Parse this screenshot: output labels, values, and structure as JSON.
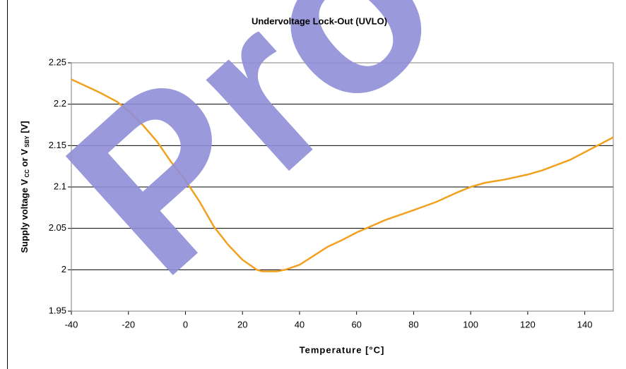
{
  "chart_data": {
    "type": "line",
    "title": "Undervoltage Lock-Out (UVLO)",
    "xlabel": "Temperature [°C]",
    "ylabel_parts": [
      {
        "text": "Supply voltage V"
      },
      {
        "text": "CC",
        "sub": true
      },
      {
        "text": " or V"
      },
      {
        "text": "SBY",
        "sub": true
      },
      {
        "text": " [V]"
      }
    ],
    "watermark": "Pro",
    "xlim": [
      -40,
      150
    ],
    "xticks": [
      -40,
      -20,
      0,
      20,
      40,
      60,
      80,
      100,
      120,
      140
    ],
    "ylim": [
      1.95,
      2.25
    ],
    "yticks": [
      1.95,
      2,
      2.05,
      2.1,
      2.15,
      2.2,
      2.25
    ],
    "grid": true,
    "series": [
      {
        "color": "#f2a11f",
        "x": [
          -40,
          -30,
          -24,
          -20,
          -15,
          -10,
          -5,
          0,
          5,
          10,
          15,
          20,
          25,
          27,
          32,
          35,
          40,
          50,
          55,
          60,
          70,
          80,
          88,
          95,
          100,
          105,
          112,
          120,
          125,
          135,
          150
        ],
        "values": [
          2.23,
          2.214,
          2.203,
          2.192,
          2.175,
          2.155,
          2.13,
          2.108,
          2.082,
          2.052,
          2.03,
          2.012,
          2.0,
          1.998,
          1.998,
          2.0,
          2.006,
          2.028,
          2.036,
          2.045,
          2.06,
          2.072,
          2.082,
          2.093,
          2.1,
          2.105,
          2.109,
          2.115,
          2.12,
          2.133,
          2.16
        ]
      }
    ]
  }
}
